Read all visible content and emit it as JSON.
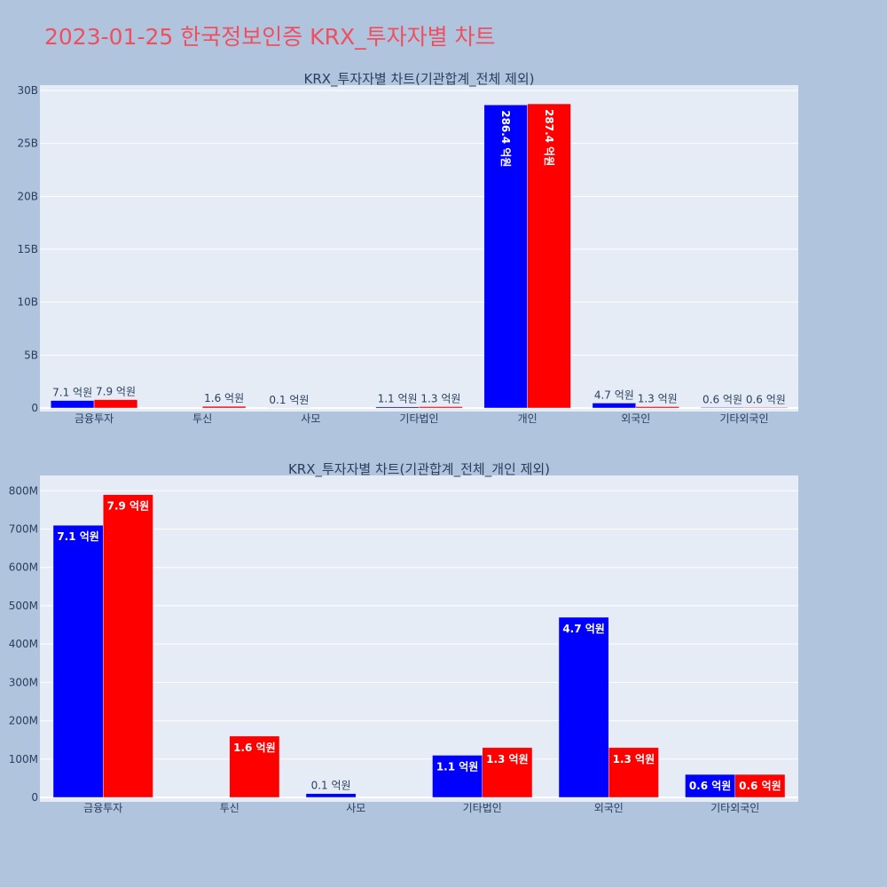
{
  "title": "2023-01-25 한국정보인증 KRX_투자자별 차트",
  "colors": {
    "buy": "#0000ff",
    "sell": "#ff0000",
    "plot_bg": "#e5ecf6",
    "page_bg": "#b0c4de",
    "title": "#ef4f5e"
  },
  "chart_data": [
    {
      "type": "bar",
      "title": "KRX_투자자별 차트(기관합계_전체 제외)",
      "categories": [
        "금융투자",
        "투신",
        "사모",
        "기타법인",
        "개인",
        "외국인",
        "기타외국인"
      ],
      "series": [
        {
          "values": [
            710000000,
            0,
            10000000,
            110000000,
            28640000000,
            470000000,
            60000000
          ],
          "labels": [
            "7.1 억원",
            "",
            "0.1 억원",
            "1.1 억원",
            "286.4 억원",
            "4.7 억원",
            "0.6 억원"
          ]
        },
        {
          "values": [
            790000000,
            160000000,
            0,
            130000000,
            28740000000,
            130000000,
            60000000
          ],
          "labels": [
            "7.9 억원",
            "1.6 억원",
            "",
            "1.3 억원",
            "287.4 억원",
            "1.3 억원",
            "0.6 억원"
          ]
        }
      ],
      "ylim": [
        0,
        30000000000
      ],
      "yticks": [
        0,
        5000000000,
        10000000000,
        15000000000,
        20000000000,
        25000000000,
        30000000000
      ],
      "ytick_labels": [
        "0",
        "5B",
        "10B",
        "15B",
        "20B",
        "25B",
        "30B"
      ],
      "grid": true
    },
    {
      "type": "bar",
      "title": "KRX_투자자별 차트(기관합계_전체_개인 제외)",
      "categories": [
        "금융투자",
        "투신",
        "사모",
        "기타법인",
        "외국인",
        "기타외국인"
      ],
      "series": [
        {
          "values": [
            710000000,
            0,
            10000000,
            110000000,
            470000000,
            60000000
          ],
          "labels": [
            "7.1 억원",
            "",
            "0.1 억원",
            "1.1 억원",
            "4.7 억원",
            "0.6 억원"
          ]
        },
        {
          "values": [
            790000000,
            160000000,
            0,
            130000000,
            130000000,
            60000000
          ],
          "labels": [
            "7.9 억원",
            "1.6 억원",
            "",
            "1.3 억원",
            "1.3 억원",
            "0.6 억원"
          ]
        }
      ],
      "ylim": [
        0,
        840000000
      ],
      "yticks": [
        0,
        100000000,
        200000000,
        300000000,
        400000000,
        500000000,
        600000000,
        700000000,
        800000000
      ],
      "ytick_labels": [
        "0",
        "100M",
        "200M",
        "300M",
        "400M",
        "500M",
        "600M",
        "700M",
        "800M"
      ],
      "grid": true
    }
  ]
}
